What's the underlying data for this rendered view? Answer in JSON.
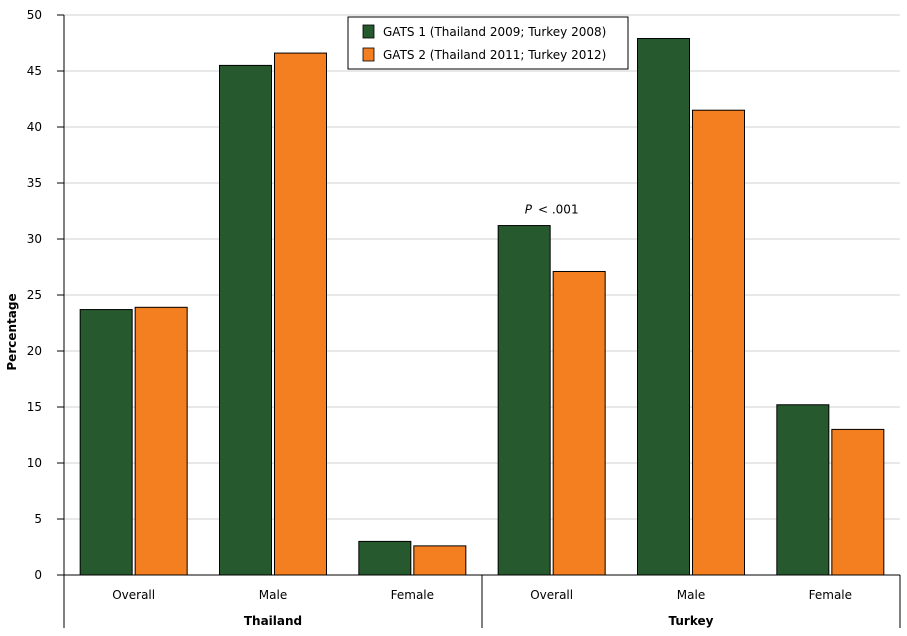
{
  "chart_data": {
    "type": "bar",
    "ylabel": "Percentage",
    "ylim": [
      0,
      50
    ],
    "yticks": [
      0,
      5,
      10,
      15,
      20,
      25,
      30,
      35,
      40,
      45,
      50
    ],
    "grid": true,
    "legend_position": "top-center",
    "groups": [
      {
        "label": "Thailand",
        "categories": [
          "Overall",
          "Male",
          "Female"
        ]
      },
      {
        "label": "Turkey",
        "categories": [
          "Overall",
          "Male",
          "Female"
        ]
      }
    ],
    "categories": [
      "Overall",
      "Male",
      "Female",
      "Overall",
      "Male",
      "Female"
    ],
    "series": [
      {
        "name": "GATS 1 (Thailand 2009; Turkey 2008)",
        "color": "#265a2e",
        "values": [
          23.7,
          45.5,
          3.0,
          31.2,
          47.9,
          15.2
        ]
      },
      {
        "name": "GATS 2 (Thailand 2011; Turkey 2012)",
        "color": "#f47f20",
        "values": [
          23.9,
          46.6,
          2.6,
          27.1,
          41.5,
          13.0
        ]
      }
    ],
    "annotations": [
      {
        "category_index": 3,
        "text_italic": "P",
        "text": "< .001"
      }
    ]
  }
}
